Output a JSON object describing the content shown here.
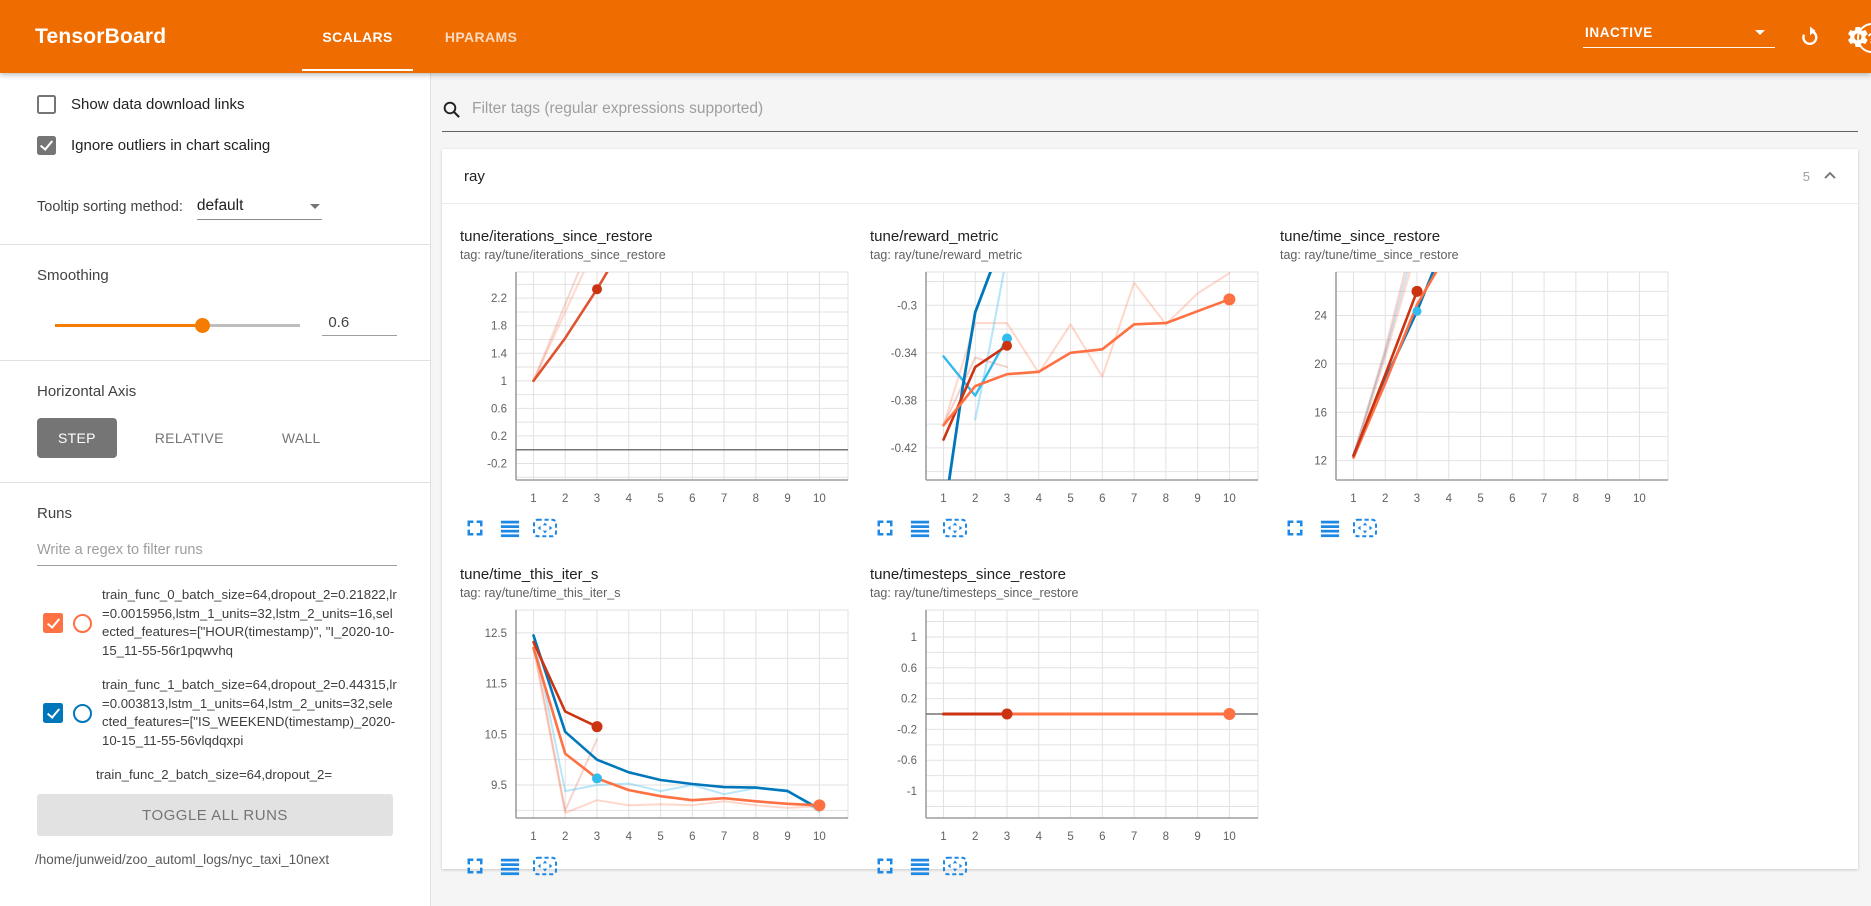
{
  "header": {
    "logo": "TensorBoard",
    "tabs": [
      {
        "label": "SCALARS",
        "active": true
      },
      {
        "label": "HPARAMS",
        "active": false
      }
    ],
    "status_dropdown": {
      "value": "INACTIVE"
    },
    "icons": {
      "refresh": "refresh-icon",
      "settings": "gear-icon",
      "help": "help-icon"
    },
    "colors": {
      "header_bg": "#ef6c00"
    }
  },
  "sidebar": {
    "checkboxes": [
      {
        "label": "Show data download links",
        "checked": false
      },
      {
        "label": "Ignore outliers in chart scaling",
        "checked": true
      }
    ],
    "tooltip_sorting": {
      "label": "Tooltip sorting method:",
      "value": "default"
    },
    "smoothing": {
      "label": "Smoothing",
      "value": "0.6",
      "fraction": 0.6,
      "accent": "#f57c00"
    },
    "horizontal_axis": {
      "label": "Horizontal Axis",
      "options": [
        {
          "label": "STEP",
          "active": true
        },
        {
          "label": "RELATIVE",
          "active": false
        },
        {
          "label": "WALL",
          "active": false
        }
      ]
    },
    "runs": {
      "label": "Runs",
      "filter_placeholder": "Write a regex to filter runs",
      "items": [
        {
          "text": "train_func_0_batch_size=64,dropout_2=0.21822,lr=0.0015956,lstm_1_units=32,lstm_2_units=16,selected_features=[\"HOUR(timestamp)\", \"I_2020-10-15_11-55-56r1pqwvhq",
          "checked": true,
          "color": "#ff7043"
        },
        {
          "text": "train_func_1_batch_size=64,dropout_2=0.44315,lr=0.003813,lstm_1_units=64,lstm_2_units=32,selected_features=[\"IS_WEEKEND(timestamp)_2020-10-15_11-55-56vlqdqxpi",
          "checked": true,
          "color": "#0077bb"
        },
        {
          "text": "train_func_2_batch_size=64,dropout_2=",
          "checked": true,
          "color": "#33bbee",
          "partial": true
        }
      ],
      "toggle_all_label": "TOGGLE ALL RUNS",
      "logdir": "/home/junweid/zoo_automl_logs/nyc_taxi_10next"
    }
  },
  "main": {
    "filter_placeholder": "Filter tags (regular expressions supported)",
    "section": {
      "name": "ray",
      "count": "5"
    },
    "chart_toolbar_icons": [
      "expand-icon",
      "run-selector-icon",
      "fit-domain-icon"
    ],
    "toolbar_color": "#1e88e5"
  },
  "chart_data": [
    {
      "type": "line",
      "title": "tune/iterations_since_restore",
      "tag": "tag: ray/tune/iterations_since_restore",
      "xlabel": "step",
      "xticks": [
        1,
        2,
        3,
        4,
        5,
        6,
        7,
        8,
        9,
        10
      ],
      "xlim": [
        0.45,
        10.9
      ],
      "yticks": [
        -0.2,
        0.2,
        0.6,
        1,
        1.4,
        1.8,
        2.2
      ],
      "ytick_labels": [
        "-0.2",
        "0.2",
        "0.6",
        "1",
        "1.4",
        "1.8",
        "2.2"
      ],
      "ylim": [
        -0.44,
        2.58
      ],
      "series": [
        {
          "name": "zero-baseline",
          "color": "#757575",
          "width": 1.5,
          "opacity": 1,
          "points": [
            [
              0.45,
              0
            ],
            [
              10.9,
              0
            ]
          ]
        },
        {
          "name": "train_func_0-unsmoothed",
          "color": "#ff7043",
          "width": 2.2,
          "opacity": 0.25,
          "points": [
            [
              1,
              1
            ],
            [
              2,
              2
            ],
            [
              2.58,
              2.58
            ]
          ]
        },
        {
          "name": "train_func_1-unsmoothed",
          "color": "#cc3311",
          "width": 2.2,
          "opacity": 0.18,
          "points": [
            [
              1,
              1
            ],
            [
              2.42,
              2.58
            ]
          ]
        },
        {
          "name": "train_func_0-smoothed",
          "color": "#e0532f",
          "width": 2.6,
          "opacity": 1,
          "points": [
            [
              1,
              1
            ],
            [
              2,
              1.62
            ],
            [
              3,
              2.33
            ],
            [
              3.32,
              2.58
            ]
          ]
        }
      ],
      "markers": [
        {
          "x": 3,
          "y": 2.33,
          "color": "#cc3311",
          "r": 5
        }
      ]
    },
    {
      "type": "line",
      "title": "tune/reward_metric",
      "tag": "tag: ray/tune/reward_metric",
      "xlabel": "step",
      "xticks": [
        1,
        2,
        3,
        4,
        5,
        6,
        7,
        8,
        9,
        10
      ],
      "xlim": [
        0.45,
        10.9
      ],
      "yticks": [
        -0.42,
        -0.38,
        -0.34,
        -0.3
      ],
      "ytick_labels": [
        "-0.42",
        "-0.38",
        "-0.34",
        "-0.3"
      ],
      "ylim": [
        -0.447,
        -0.272
      ],
      "series": [
        {
          "name": "run2-unsmoothed",
          "color": "#ff7043",
          "width": 2,
          "opacity": 0.28,
          "points": [
            [
              1,
              -0.401
            ],
            [
              2,
              -0.315
            ],
            [
              3,
              -0.315
            ],
            [
              4,
              -0.357
            ],
            [
              5,
              -0.316
            ],
            [
              6,
              -0.36
            ],
            [
              7,
              -0.281
            ],
            [
              8,
              -0.316
            ],
            [
              9,
              -0.29
            ],
            [
              10,
              -0.273
            ]
          ]
        },
        {
          "name": "run0-unsmoothed",
          "color": "#cc3311",
          "width": 2,
          "opacity": 0.22,
          "points": [
            [
              1,
              -0.401
            ],
            [
              2,
              -0.344
            ],
            [
              3,
              -0.352
            ]
          ]
        },
        {
          "name": "run1-unsmoothed-2",
          "color": "#33bbee",
          "width": 2.2,
          "opacity": 0.35,
          "points": [
            [
              2,
              -0.396
            ],
            [
              2.35,
              -0.35
            ],
            [
              2.9,
              -0.272
            ]
          ]
        },
        {
          "name": "run1-unsmoothed",
          "color": "#33bbee",
          "width": 2.4,
          "opacity": 1,
          "points": [
            [
              1,
              -0.343
            ],
            [
              2,
              -0.376
            ],
            [
              3,
              -0.328
            ]
          ]
        },
        {
          "name": "run1-smoothed",
          "color": "#0077bb",
          "width": 2.8,
          "opacity": 1,
          "points": [
            [
              1.18,
              -0.447
            ],
            [
              1.6,
              -0.37
            ],
            [
              2,
              -0.306
            ],
            [
              2.48,
              -0.272
            ]
          ]
        },
        {
          "name": "run0-smoothed",
          "color": "#cc3311",
          "width": 2.6,
          "opacity": 1,
          "points": [
            [
              1,
              -0.413
            ],
            [
              2,
              -0.352
            ],
            [
              3,
              -0.334
            ]
          ]
        },
        {
          "name": "run2-smoothed",
          "color": "#ff7043",
          "width": 2.6,
          "opacity": 1,
          "points": [
            [
              1,
              -0.401
            ],
            [
              2,
              -0.368
            ],
            [
              3,
              -0.358
            ],
            [
              4,
              -0.356
            ],
            [
              5,
              -0.34
            ],
            [
              6,
              -0.337
            ],
            [
              7,
              -0.316
            ],
            [
              8,
              -0.315
            ],
            [
              9,
              -0.305
            ],
            [
              10,
              -0.295
            ]
          ]
        }
      ],
      "markers": [
        {
          "x": 3,
          "y": -0.328,
          "color": "#33bbee",
          "r": 5
        },
        {
          "x": 3,
          "y": -0.334,
          "color": "#cc3311",
          "r": 5
        },
        {
          "x": 10,
          "y": -0.295,
          "color": "#ff7043",
          "r": 6
        }
      ]
    },
    {
      "type": "line",
      "title": "tune/time_since_restore",
      "tag": "tag: ray/tune/time_since_restore",
      "xlabel": "step",
      "xticks": [
        1,
        2,
        3,
        4,
        5,
        6,
        7,
        8,
        9,
        10
      ],
      "xlim": [
        0.45,
        10.9
      ],
      "yticks": [
        12,
        16,
        20,
        24
      ],
      "ytick_labels": [
        "12",
        "16",
        "20",
        "24"
      ],
      "ylim": [
        10.4,
        27.6
      ],
      "series": [
        {
          "name": "run0-unsmoothed",
          "color": "#cc3311",
          "width": 2.2,
          "opacity": 0.2,
          "points": [
            [
              1,
              12.4
            ],
            [
              2,
              21.2
            ],
            [
              2.62,
              27.6
            ]
          ]
        },
        {
          "name": "run2-unsmoothed",
          "color": "#ff7043",
          "width": 2.2,
          "opacity": 0.25,
          "points": [
            [
              1,
              12.3
            ],
            [
              2,
              20.6
            ],
            [
              2.78,
              27.6
            ]
          ]
        },
        {
          "name": "run1-unsmoothed",
          "color": "#0077bb",
          "width": 2.2,
          "opacity": 0.18,
          "points": [
            [
              1,
              12.45
            ],
            [
              2,
              20.9
            ],
            [
              2.7,
              27.6
            ]
          ]
        },
        {
          "name": "run1-smoothed",
          "color": "#0077bb",
          "width": 2.6,
          "opacity": 1,
          "points": [
            [
              1,
              12.45
            ],
            [
              2,
              18.7
            ],
            [
              3,
              24.35
            ],
            [
              3.5,
              27.6
            ]
          ]
        },
        {
          "name": "run2-smoothed",
          "color": "#ff7043",
          "width": 2.6,
          "opacity": 1,
          "points": [
            [
              1,
              12.25
            ],
            [
              2,
              18.4
            ],
            [
              3,
              24.9
            ],
            [
              3.6,
              27.6
            ]
          ]
        },
        {
          "name": "run0-smoothed",
          "color": "#cc3311",
          "width": 2.6,
          "opacity": 1,
          "points": [
            [
              1,
              12.4
            ],
            [
              2,
              19.1
            ],
            [
              3,
              26.0
            ]
          ]
        }
      ],
      "markers": [
        {
          "x": 3,
          "y": 26.0,
          "color": "#cc3311",
          "r": 5.5
        },
        {
          "x": 3,
          "y": 24.35,
          "color": "#33bbee",
          "r": 4.5
        }
      ]
    },
    {
      "type": "line",
      "title": "tune/time_this_iter_s",
      "tag": "tag: ray/tune/time_this_iter_s",
      "xlabel": "step",
      "xticks": [
        1,
        2,
        3,
        4,
        5,
        6,
        7,
        8,
        9,
        10
      ],
      "xlim": [
        0.45,
        10.9
      ],
      "yticks": [
        9.5,
        10.5,
        11.5,
        12.5
      ],
      "ytick_labels": [
        "9.5",
        "10.5",
        "11.5",
        "12.5"
      ],
      "ylim": [
        8.85,
        12.95
      ],
      "series": [
        {
          "name": "run0-unsmoothed",
          "color": "#cc3311",
          "width": 2,
          "opacity": 0.2,
          "points": [
            [
              1,
              12.3
            ],
            [
              2,
              9.0
            ],
            [
              3,
              10.4
            ]
          ]
        },
        {
          "name": "run2-unsmoothed",
          "color": "#ff7043",
          "width": 2,
          "opacity": 0.28,
          "points": [
            [
              1,
              12.2
            ],
            [
              2,
              8.95
            ],
            [
              3,
              9.2
            ],
            [
              4,
              9.1
            ],
            [
              5,
              9.12
            ],
            [
              6,
              9.1
            ],
            [
              7,
              9.18
            ],
            [
              8,
              9.1
            ],
            [
              9,
              9.05
            ],
            [
              10,
              9.08
            ]
          ]
        },
        {
          "name": "run1-unsmoothed",
          "color": "#33bbee",
          "width": 2,
          "opacity": 0.35,
          "points": [
            [
              1,
              12.45
            ],
            [
              2,
              9.38
            ],
            [
              3,
              9.5
            ],
            [
              4,
              9.53
            ],
            [
              5,
              9.38
            ],
            [
              6,
              9.5
            ],
            [
              7,
              9.32
            ],
            [
              8,
              9.44
            ],
            [
              9,
              9.4
            ],
            [
              10,
              8.97
            ]
          ]
        },
        {
          "name": "run1-smoothed",
          "color": "#0077bb",
          "width": 2.6,
          "opacity": 1,
          "points": [
            [
              1,
              12.45
            ],
            [
              2,
              10.55
            ],
            [
              3,
              10.0
            ],
            [
              4,
              9.75
            ],
            [
              5,
              9.6
            ],
            [
              6,
              9.52
            ],
            [
              7,
              9.46
            ],
            [
              8,
              9.45
            ],
            [
              9,
              9.38
            ],
            [
              10,
              9.03
            ]
          ]
        },
        {
          "name": "run2-smoothed",
          "color": "#ff7043",
          "width": 2.6,
          "opacity": 1,
          "points": [
            [
              1,
              12.2
            ],
            [
              2,
              10.12
            ],
            [
              3,
              9.63
            ],
            [
              4,
              9.4
            ],
            [
              5,
              9.28
            ],
            [
              6,
              9.2
            ],
            [
              7,
              9.24
            ],
            [
              8,
              9.18
            ],
            [
              9,
              9.13
            ],
            [
              10,
              9.1
            ]
          ]
        },
        {
          "name": "run0-smoothed",
          "color": "#cc3311",
          "width": 2.6,
          "opacity": 1,
          "points": [
            [
              1,
              12.32
            ],
            [
              2,
              10.95
            ],
            [
              3,
              10.65
            ]
          ]
        }
      ],
      "markers": [
        {
          "x": 3,
          "y": 10.65,
          "color": "#cc3311",
          "r": 5.5
        },
        {
          "x": 3,
          "y": 9.63,
          "color": "#33bbee",
          "r": 5
        },
        {
          "x": 10,
          "y": 9.1,
          "color": "#ff7043",
          "r": 6
        }
      ]
    },
    {
      "type": "line",
      "title": "tune/timesteps_since_restore",
      "tag": "tag: ray/tune/timesteps_since_restore",
      "xlabel": "step",
      "xticks": [
        1,
        2,
        3,
        4,
        5,
        6,
        7,
        8,
        9,
        10
      ],
      "xlim": [
        0.45,
        10.9
      ],
      "yticks": [
        -1,
        -0.6,
        -0.2,
        0.2,
        0.6,
        1
      ],
      "ytick_labels": [
        "-1",
        "-0.6",
        "-0.2",
        "0.2",
        "0.6",
        "1"
      ],
      "ylim": [
        -1.35,
        1.35
      ],
      "series": [
        {
          "name": "zero-baseline",
          "color": "#757575",
          "width": 1.5,
          "opacity": 1,
          "points": [
            [
              0.45,
              0
            ],
            [
              10.9,
              0
            ]
          ]
        },
        {
          "name": "run2-smoothed",
          "color": "#ff7043",
          "width": 3,
          "opacity": 1,
          "points": [
            [
              1,
              0
            ],
            [
              10,
              0
            ]
          ]
        },
        {
          "name": "run0-smoothed",
          "color": "#cc3311",
          "width": 3,
          "opacity": 1,
          "points": [
            [
              1,
              0
            ],
            [
              3,
              0
            ]
          ]
        }
      ],
      "markers": [
        {
          "x": 3,
          "y": 0,
          "color": "#cc3311",
          "r": 5.5
        },
        {
          "x": 10,
          "y": 0,
          "color": "#ff7043",
          "r": 6
        }
      ]
    }
  ]
}
